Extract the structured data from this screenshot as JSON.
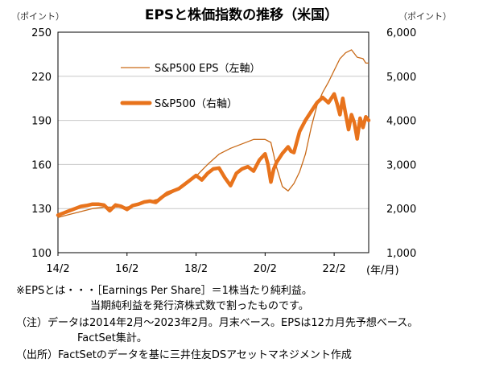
{
  "chart_data": {
    "type": "line",
    "title": "EPSと株価指数の推移（米国）",
    "left_axis_unit": "（ポイント）",
    "right_axis_unit": "（ポイント）",
    "x_unit_label": "(年/月)",
    "x_tick_labels": [
      "14/2",
      "16/2",
      "18/2",
      "20/2",
      "22/2"
    ],
    "x_tick_months": [
      0,
      24,
      48,
      72,
      96
    ],
    "x_range_months": [
      0,
      108
    ],
    "y_left_range": [
      100,
      250
    ],
    "y_left_ticks": [
      "100",
      "130",
      "160",
      "190",
      "220",
      "250"
    ],
    "y_right_range": [
      1000,
      6000
    ],
    "y_right_ticks": [
      "1,000",
      "2,000",
      "3,000",
      "4,000",
      "5,000",
      "6,000"
    ],
    "grid": "horizontal",
    "legend_position": "top-center",
    "series": [
      {
        "name": "S&P500 EPS（左軸）",
        "axis": "left",
        "color": "#c96a18",
        "points": [
          [
            0,
            124
          ],
          [
            4,
            126
          ],
          [
            8,
            128
          ],
          [
            12,
            130
          ],
          [
            16,
            131
          ],
          [
            20,
            131
          ],
          [
            24,
            131
          ],
          [
            28,
            133
          ],
          [
            32,
            135
          ],
          [
            36,
            137
          ],
          [
            40,
            141
          ],
          [
            44,
            146
          ],
          [
            48,
            152
          ],
          [
            52,
            160
          ],
          [
            56,
            167
          ],
          [
            60,
            171
          ],
          [
            64,
            174
          ],
          [
            68,
            177
          ],
          [
            72,
            177
          ],
          [
            74,
            175
          ],
          [
            76,
            158
          ],
          [
            78,
            145
          ],
          [
            80,
            142
          ],
          [
            82,
            147
          ],
          [
            84,
            155
          ],
          [
            86,
            167
          ],
          [
            88,
            185
          ],
          [
            90,
            200
          ],
          [
            92,
            209
          ],
          [
            94,
            216
          ],
          [
            96,
            224
          ],
          [
            98,
            232
          ],
          [
            100,
            236
          ],
          [
            102,
            238
          ],
          [
            104,
            233
          ],
          [
            106,
            232
          ],
          [
            107,
            229
          ],
          [
            108,
            229
          ]
        ]
      },
      {
        "name": "S&P500（右軸）",
        "axis": "right",
        "color": "#e8731c",
        "points": [
          [
            0,
            1850
          ],
          [
            2,
            1900
          ],
          [
            4,
            1950
          ],
          [
            6,
            2000
          ],
          [
            8,
            2050
          ],
          [
            10,
            2070
          ],
          [
            12,
            2100
          ],
          [
            14,
            2100
          ],
          [
            16,
            2080
          ],
          [
            18,
            1950
          ],
          [
            20,
            2080
          ],
          [
            22,
            2050
          ],
          [
            24,
            1980
          ],
          [
            26,
            2070
          ],
          [
            28,
            2100
          ],
          [
            30,
            2150
          ],
          [
            32,
            2170
          ],
          [
            34,
            2140
          ],
          [
            36,
            2250
          ],
          [
            38,
            2350
          ],
          [
            40,
            2400
          ],
          [
            42,
            2450
          ],
          [
            44,
            2550
          ],
          [
            46,
            2650
          ],
          [
            48,
            2750
          ],
          [
            49,
            2700
          ],
          [
            50,
            2650
          ],
          [
            52,
            2800
          ],
          [
            54,
            2900
          ],
          [
            56,
            2920
          ],
          [
            58,
            2700
          ],
          [
            60,
            2520
          ],
          [
            62,
            2800
          ],
          [
            64,
            2900
          ],
          [
            66,
            2950
          ],
          [
            68,
            2850
          ],
          [
            70,
            3100
          ],
          [
            72,
            3240
          ],
          [
            73,
            3000
          ],
          [
            74,
            2600
          ],
          [
            75,
            2900
          ],
          [
            76,
            3050
          ],
          [
            78,
            3250
          ],
          [
            80,
            3400
          ],
          [
            81,
            3300
          ],
          [
            82,
            3270
          ],
          [
            84,
            3750
          ],
          [
            86,
            4000
          ],
          [
            88,
            4200
          ],
          [
            90,
            4400
          ],
          [
            92,
            4520
          ],
          [
            94,
            4400
          ],
          [
            96,
            4600
          ],
          [
            97,
            4380
          ],
          [
            98,
            4130
          ],
          [
            99,
            4500
          ],
          [
            100,
            4140
          ],
          [
            101,
            3790
          ],
          [
            102,
            4130
          ],
          [
            103,
            3950
          ],
          [
            104,
            3580
          ],
          [
            105,
            4050
          ],
          [
            106,
            3840
          ],
          [
            107,
            4080
          ],
          [
            108,
            4000
          ]
        ]
      }
    ]
  },
  "notes": {
    "eps_def_1": "※EPSとは・・・［Earnings Per Share］＝1株当たり純利益。",
    "eps_def_2": "当期純利益を発行済株式数で割ったものです。",
    "note_1": "（注）データは2014年2月～2023年2月。月末ベース。EPSは12カ月先予想ベース。",
    "note_2": "FactSet集計。",
    "source": "（出所）FactSetのデータを基に三井住友DSアセットマネジメント作成"
  }
}
